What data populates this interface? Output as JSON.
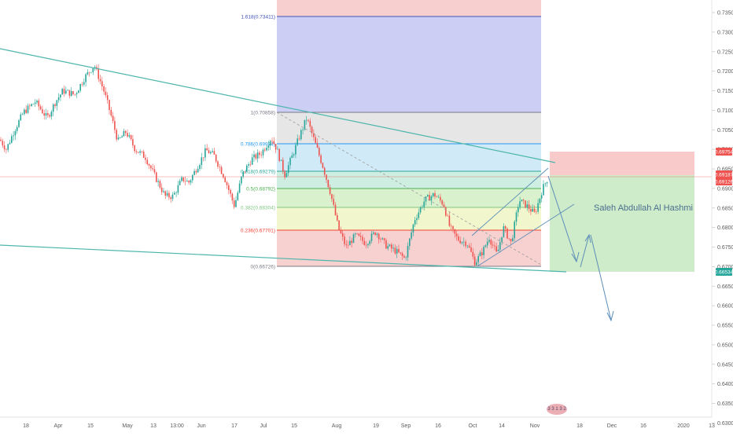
{
  "chart_data": {
    "type": "candlestick",
    "y_range": [
      0.626,
      0.7375
    ],
    "y_ticks": [
      "0.73500",
      "0.73000",
      "0.72500",
      "0.72000",
      "0.71500",
      "0.71000",
      "0.70500",
      "0.70000",
      "0.69500",
      "0.69000",
      "0.68500",
      "0.68000",
      "0.67500",
      "0.67000",
      "0.66500",
      "0.66000",
      "0.65500",
      "0.65000",
      "0.64500",
      "0.64000",
      "0.63500",
      "0.63000"
    ],
    "x_ticks": [
      "18",
      "Apr",
      "15",
      "May",
      "13",
      "13:00",
      "Jun",
      "17",
      "Jul",
      "15",
      "Aug",
      "19",
      "Sep",
      "16",
      "Oct",
      "14",
      "Nov",
      "18",
      "Dec",
      "16",
      "2020",
      "13"
    ],
    "fib_levels": [
      {
        "label": "1.618(0.73411)",
        "price": 0.73411,
        "color": "#3f51b5"
      },
      {
        "label": "1(0.70858)",
        "price": 0.70858,
        "color": "#787b86"
      },
      {
        "label": "0.786(0.69974)",
        "price": 0.69974,
        "color": "#2196f3"
      },
      {
        "label": "0.618(0.69279)",
        "price": 0.69279,
        "color": "#26a69a"
      },
      {
        "label": "0.5(0.68792)",
        "price": 0.68792,
        "color": "#4caf50"
      },
      {
        "label": "0.382(0.68304)",
        "price": 0.68304,
        "color": "#81c784"
      },
      {
        "label": "0.236(0.67701)",
        "price": 0.67701,
        "color": "#f44336"
      },
      {
        "label": "0(0.66726)",
        "price": 0.66726,
        "color": "#787b86"
      }
    ],
    "price_labels": [
      {
        "text": "0.69754",
        "price": 0.69754,
        "color": "#ef5350"
      },
      {
        "text": "0.69187",
        "price": 0.69187,
        "color": "#ef5350"
      },
      {
        "text": "0.69126",
        "price": 0.69126,
        "color": "#ef5350"
      },
      {
        "text": "0.66534",
        "price": 0.66534,
        "color": "#26a69a"
      }
    ],
    "annotation": "Saleh Abdullah Al Hashmi",
    "watermark": "3 3 1 3 2",
    "colors": {
      "up": "#26a69a",
      "down": "#ef5350",
      "trendline": "#26a69a",
      "arrow": "#5b8db8"
    }
  }
}
